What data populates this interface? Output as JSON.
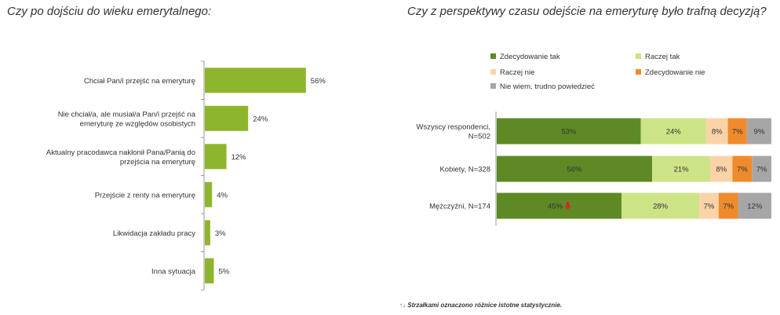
{
  "chart_data": [
    {
      "type": "bar",
      "orientation": "horizontal",
      "title": "Czy po dojściu do wieku emerytalnego:",
      "categories": [
        [
          "Chciał Pan/i przejść na emeryturę"
        ],
        [
          "Nie chciał/a, ale musiał/a Pan/i przejść na",
          "emeryturę ze względów osobistych"
        ],
        [
          "Aktualny pracodawca nakłonił Pana/Panią do",
          "przejścia na emeryturę"
        ],
        [
          "Przejście z renty na emeryturę"
        ],
        [
          "Likwidacja zakładu pracy"
        ],
        [
          "Inna sytuacja"
        ]
      ],
      "values": [
        56,
        24,
        12,
        4,
        3,
        5
      ],
      "value_labels": [
        "56%",
        "24%",
        "12%",
        "4%",
        "3%",
        "5%"
      ],
      "unit": "%",
      "color": "#8db52d",
      "xlim": [
        0,
        60
      ]
    },
    {
      "type": "bar",
      "orientation": "horizontal",
      "stacked": true,
      "title": "Czy z perspektywy czasu odejście na emeryturę było trafną decyzją?",
      "categories": [
        [
          "Wszyscy respondenci,",
          "N=502"
        ],
        [
          "Kobiety, N=328"
        ],
        [
          "Mężczyźni, N=174"
        ]
      ],
      "series": [
        {
          "name": "Zdecydowanie tak",
          "color": "#5d8a25",
          "values": [
            53,
            56,
            45
          ],
          "labels": [
            "53%",
            "56%",
            "45%"
          ]
        },
        {
          "name": "Raczej tak",
          "color": "#cce486",
          "values": [
            24,
            21,
            28
          ],
          "labels": [
            "24%",
            "21%",
            "28%"
          ]
        },
        {
          "name": "Raczej nie",
          "color": "#fbd3a8",
          "values": [
            8,
            8,
            7
          ],
          "labels": [
            "8%",
            "8%",
            "7%"
          ]
        },
        {
          "name": "Zdecydowanie nie",
          "color": "#ef8b2c",
          "values": [
            7,
            7,
            7
          ],
          "labels": [
            "7%",
            "7%",
            "7%"
          ]
        },
        {
          "name": "Nie wiem, trudno powiedzieć",
          "color": "#a6a6a6",
          "values": [
            9,
            7,
            12
          ],
          "labels": [
            "9%",
            "7%",
            "12%"
          ]
        }
      ],
      "annotations": [
        {
          "category_index": 2,
          "series_index": 0,
          "marker": "down-arrow",
          "color": "#e02020"
        }
      ],
      "legend_position": "top"
    }
  ],
  "footnote": "Strzałkami oznaczono różnice istotne statystycznie."
}
